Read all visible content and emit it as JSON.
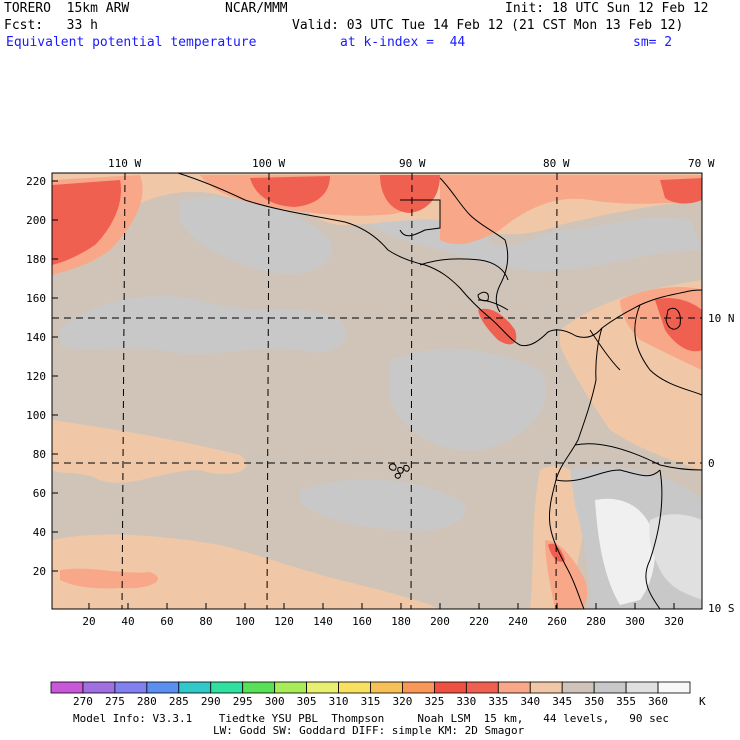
{
  "header": {
    "model": "TORERO  15km ARW",
    "org": "NCAR/MMM",
    "init": "Init: 18 UTC Sun 12 Feb 12",
    "fcst": "Fcst:   33 h",
    "valid": "Valid: 03 UTC Tue 14 Feb 12 (21 CST Mon 13 Feb 12)",
    "field": "Equivalent potential temperature",
    "level": "at k-index =  44",
    "smooth": "sm= 2"
  },
  "axes": {
    "top_lon": [
      "110 W",
      "100 W",
      "90 W",
      "80 W",
      "70 W"
    ],
    "right_lat": [
      "10 N",
      "0",
      "10 S"
    ],
    "left_y": [
      "220",
      "200",
      "180",
      "160",
      "140",
      "120",
      "100",
      "80",
      "60",
      "40",
      "20"
    ],
    "bottom_x": [
      "20",
      "40",
      "60",
      "80",
      "100",
      "120",
      "140",
      "160",
      "180",
      "200",
      "220",
      "240",
      "260",
      "280",
      "300",
      "320"
    ]
  },
  "colorbar": {
    "labels": [
      "270",
      "275",
      "280",
      "285",
      "290",
      "295",
      "300",
      "305",
      "310",
      "315",
      "320",
      "325",
      "330",
      "335",
      "340",
      "345",
      "350",
      "355",
      "360"
    ],
    "unit": "K",
    "colors": [
      "#c858d8",
      "#a070e0",
      "#8080f0",
      "#5a8ef0",
      "#30c8c8",
      "#30e0a0",
      "#58e058",
      "#a8ec58",
      "#e8f070",
      "#f8e060",
      "#f8c058",
      "#f89858",
      "#f05040",
      "#f06050",
      "#f8a888",
      "#f0c8a8",
      "#d0c4b8",
      "#c8c8c8",
      "#e0e0e0",
      "#f8f8f8"
    ]
  },
  "footer": {
    "line1": "Model Info: V3.3.1    Tiedtke YSU PBL  Thompson     Noah LSM  15 km,   44 levels,   90 sec",
    "line2": "LW: Godd SW: Goddard DIFF: simple KM: 2D Smagor"
  },
  "palette": {
    "background_field": "#d0c4b8",
    "cool_band": "#c8c8c8",
    "warm_band": "#f0c8a8",
    "hot": "#f8a888",
    "hotter": "#f06050",
    "white": "#f0f0f0"
  }
}
